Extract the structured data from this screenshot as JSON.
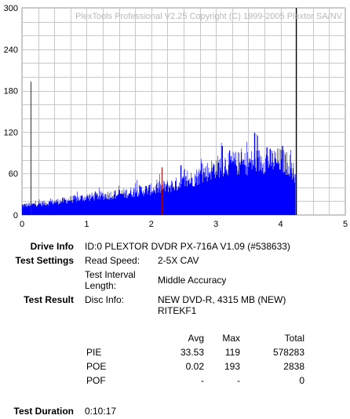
{
  "watermark": "PlexTools Professional V2.25 Copyright (C) 1999-2005 Plextor SA/NV",
  "chart_data": {
    "type": "bar",
    "title": "",
    "xlabel": "",
    "ylabel": "",
    "xlim": [
      0,
      5
    ],
    "ylim": [
      0,
      300
    ],
    "x_ticks": [
      "0",
      "1",
      "2",
      "3",
      "4",
      "5"
    ],
    "y_ticks": [
      "0",
      "60",
      "120",
      "180",
      "240",
      "300"
    ],
    "grid": true,
    "series": [
      {
        "name": "",
        "color": "#0000ff",
        "x_end": 4.23,
        "profile": [
          [
            0.0,
            15
          ],
          [
            0.3,
            18
          ],
          [
            0.6,
            22
          ],
          [
            0.8,
            25
          ],
          [
            1.0,
            28
          ],
          [
            1.2,
            30
          ],
          [
            1.4,
            32
          ],
          [
            1.6,
            34
          ],
          [
            1.8,
            38
          ],
          [
            2.0,
            40
          ],
          [
            2.2,
            44
          ],
          [
            2.4,
            48
          ],
          [
            2.6,
            55
          ],
          [
            2.8,
            65
          ],
          [
            3.0,
            75
          ],
          [
            3.2,
            82
          ],
          [
            3.4,
            80
          ],
          [
            3.6,
            84
          ],
          [
            3.8,
            85
          ],
          [
            4.0,
            85
          ],
          [
            4.15,
            78
          ],
          [
            4.23,
            60
          ]
        ],
        "peaks": [
          [
            3.59,
            119
          ],
          [
            3.09,
            100
          ],
          [
            4.02,
            100
          ],
          [
            3.78,
            98
          ],
          [
            2.45,
            72
          ]
        ]
      }
    ],
    "markers": [
      {
        "x": 0.13,
        "y": 193,
        "color": "#aa0000"
      },
      {
        "x": 2.16,
        "y": 69,
        "color": "#aa0000"
      }
    ],
    "end_line": {
      "x": 4.23,
      "color": "#000000"
    }
  },
  "info": {
    "drive_info_label": "Drive Info",
    "drive_info_value": "ID:0 PLEXTOR DVDR PX-716A V1.09 (#538633)",
    "test_settings_label": "Test Settings",
    "read_speed_label": "Read Speed:",
    "read_speed_value": "2-5X CAV",
    "interval_label_1": "Test Interval",
    "interval_label_2": "Length:",
    "interval_value": "Middle Accuracy",
    "test_result_label": "Test Result",
    "disc_info_label": "Disc Info:",
    "disc_info_value_1": "NEW DVD-R, 4315 MB (NEW)",
    "disc_info_value_2": "RITEKF1",
    "test_duration_label": "Test Duration",
    "test_duration_value": "0:10:17"
  },
  "stats": {
    "headers": {
      "avg": "Avg",
      "max": "Max",
      "total": "Total"
    },
    "rows": [
      {
        "name": "PIE",
        "avg": "33.53",
        "max": "119",
        "total": "578283"
      },
      {
        "name": "POE",
        "avg": "0.02",
        "max": "193",
        "total": "2838"
      },
      {
        "name": "POF",
        "avg": "-",
        "max": "-",
        "total": "0"
      }
    ]
  }
}
